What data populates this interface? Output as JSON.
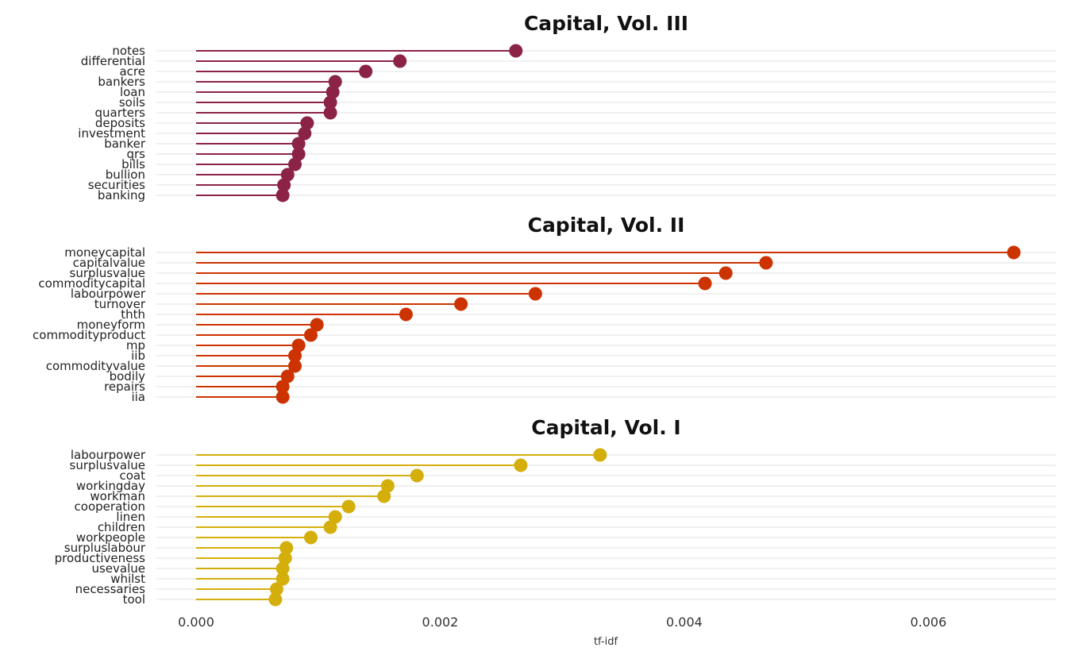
{
  "chart_data": {
    "type": "lollipop",
    "xlabel": "tf-idf",
    "xlim": [
      -0.0003,
      0.007
    ],
    "x_ticks": [
      0.0,
      0.002,
      0.004,
      0.006
    ],
    "x_tick_labels": [
      "0.000",
      "0.002",
      "0.004",
      "0.006"
    ],
    "grid": true,
    "legend": "none",
    "panels": [
      {
        "title": "Capital, Vol. III",
        "color": "#8B2346",
        "terms": [
          "notes",
          "differential",
          "acre",
          "bankers",
          "loan",
          "soils",
          "quarters",
          "deposits",
          "investment",
          "banker",
          "qrs",
          "bills",
          "bullion",
          "securities",
          "banking"
        ],
        "values": [
          0.00262,
          0.00167,
          0.00139,
          0.00114,
          0.00112,
          0.0011,
          0.0011,
          0.00091,
          0.00089,
          0.00084,
          0.00084,
          0.00081,
          0.00075,
          0.00072,
          0.00071
        ]
      },
      {
        "title": "Capital, Vol. II",
        "color": "#CC3300",
        "terms": [
          "moneycapital",
          "capitalvalue",
          "surplusvalue",
          "commoditycapital",
          "labourpower",
          "turnover",
          "thth",
          "moneyform",
          "commodityproduct",
          "mp",
          "iib",
          "commodityvalue",
          "bodily",
          "repairs",
          "iia"
        ],
        "values": [
          0.0067,
          0.00467,
          0.00434,
          0.00417,
          0.00278,
          0.00217,
          0.00172,
          0.00099,
          0.00094,
          0.00084,
          0.00081,
          0.00081,
          0.00075,
          0.00071,
          0.00071
        ]
      },
      {
        "title": "Capital, Vol. I",
        "color": "#D4AE0B",
        "terms": [
          "labourpower",
          "surplusvalue",
          "coat",
          "workingday",
          "workman",
          "cooperation",
          "linen",
          "children",
          "workpeople",
          "surpluslabour",
          "productiveness",
          "usevalue",
          "whilst",
          "necessaries",
          "tool"
        ],
        "values": [
          0.00331,
          0.00266,
          0.00181,
          0.00157,
          0.00154,
          0.00125,
          0.00114,
          0.0011,
          0.00094,
          0.00074,
          0.00073,
          0.00071,
          0.00071,
          0.00066,
          0.00065
        ]
      }
    ]
  }
}
